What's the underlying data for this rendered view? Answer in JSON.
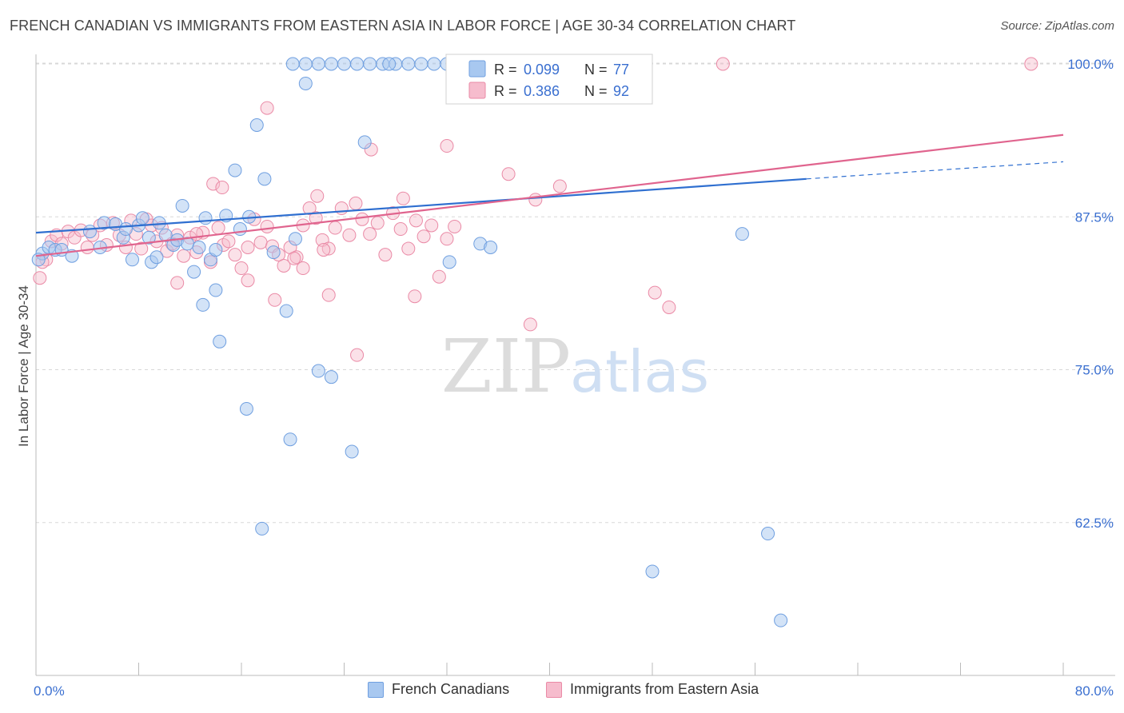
{
  "header": {
    "title": "FRENCH CANADIAN VS IMMIGRANTS FROM EASTERN ASIA IN LABOR FORCE | AGE 30-34 CORRELATION CHART",
    "source": "Source: ZipAtlas.com"
  },
  "watermark": {
    "zip": "ZIP",
    "atlas": "atlas"
  },
  "colors": {
    "blue_fill": "#a8c8f0",
    "blue_stroke": "#6f9fe0",
    "blue_line": "#2f6fd0",
    "pink_fill": "#f6bccd",
    "pink_stroke": "#ea8aa6",
    "pink_line": "#e0648e",
    "value_text": "#3a6fd0",
    "grid": "#d8d8d8"
  },
  "legend": {
    "blue": {
      "r_label": "R =",
      "r_value": "0.099",
      "n_label": "N =",
      "n_value": "77"
    },
    "pink": {
      "r_label": "R =",
      "r_value": "0.386",
      "n_label": "N =",
      "n_value": "92"
    }
  },
  "chart_data": {
    "type": "scatter",
    "title": "FRENCH CANADIAN VS IMMIGRANTS FROM EASTERN ASIA IN LABOR FORCE | AGE 30-34 CORRELATION CHART",
    "ylabel": "In Labor Force | Age 30-34",
    "xlabel": "",
    "xlim": [
      0,
      80
    ],
    "ylim": [
      50,
      100
    ],
    "x_tick_labels": [
      "0.0%",
      "80.0%"
    ],
    "y_ticks": [
      100,
      87.5,
      75,
      62.5
    ],
    "y_tick_labels": [
      "100.0%",
      "87.5%",
      "75.0%",
      "62.5%"
    ],
    "grid": true,
    "legend_position": "top-center",
    "series": [
      {
        "name": "French Canadians",
        "color": "#6f9fe0",
        "r": 0.099,
        "n": 77,
        "trend": {
          "x": [
            0,
            60
          ],
          "y": [
            86.2,
            90.6
          ],
          "dashed_to": [
            80,
            92.0
          ]
        },
        "points": [
          [
            0.5,
            84.5
          ],
          [
            1.0,
            85.0
          ],
          [
            1.5,
            84.8
          ],
          [
            2.0,
            84.8
          ],
          [
            2.8,
            84.3
          ],
          [
            4.2,
            86.3
          ],
          [
            5.0,
            85.0
          ],
          [
            5.3,
            87.0
          ],
          [
            6.2,
            86.9
          ],
          [
            6.8,
            85.8
          ],
          [
            7.0,
            86.5
          ],
          [
            7.5,
            84.0
          ],
          [
            8.0,
            86.8
          ],
          [
            8.3,
            87.4
          ],
          [
            8.8,
            85.8
          ],
          [
            9.0,
            83.8
          ],
          [
            9.4,
            84.2
          ],
          [
            9.6,
            87.0
          ],
          [
            10.1,
            86.0
          ],
          [
            10.7,
            85.2
          ],
          [
            11.0,
            85.6
          ],
          [
            11.4,
            88.4
          ],
          [
            11.8,
            85.3
          ],
          [
            12.3,
            83.0
          ],
          [
            12.7,
            85.0
          ],
          [
            13.2,
            87.4
          ],
          [
            13.6,
            84.0
          ],
          [
            14.0,
            84.8
          ],
          [
            13.0,
            80.3
          ],
          [
            14.0,
            81.5
          ],
          [
            14.3,
            77.3
          ],
          [
            14.8,
            87.6
          ],
          [
            15.5,
            91.3
          ],
          [
            15.9,
            86.5
          ],
          [
            16.6,
            87.5
          ],
          [
            16.4,
            71.8
          ],
          [
            17.2,
            95.0
          ],
          [
            17.8,
            90.6
          ],
          [
            17.6,
            62.0
          ],
          [
            18.5,
            84.6
          ],
          [
            19.5,
            79.8
          ],
          [
            19.8,
            69.3
          ],
          [
            20.2,
            85.7
          ],
          [
            21.0,
            98.4
          ],
          [
            22.0,
            74.9
          ],
          [
            23.0,
            74.4
          ],
          [
            24.6,
            68.3
          ],
          [
            25.6,
            93.6
          ],
          [
            20.0,
            100
          ],
          [
            21.0,
            100
          ],
          [
            22.0,
            100
          ],
          [
            23.0,
            100
          ],
          [
            24.0,
            100
          ],
          [
            25.0,
            100
          ],
          [
            26.0,
            100
          ],
          [
            27.0,
            100
          ],
          [
            28.0,
            100
          ],
          [
            29.0,
            100
          ],
          [
            30.0,
            100
          ],
          [
            31.0,
            100
          ],
          [
            33.0,
            100
          ],
          [
            34.0,
            100
          ],
          [
            35.0,
            100
          ],
          [
            36.0,
            100
          ],
          [
            37.0,
            100
          ],
          [
            40.0,
            100
          ],
          [
            41.0,
            100
          ],
          [
            43.0,
            100
          ],
          [
            44.0,
            100
          ],
          [
            27.5,
            100
          ],
          [
            32.0,
            100
          ],
          [
            32.2,
            83.8
          ],
          [
            34.6,
            85.3
          ],
          [
            35.4,
            85.0
          ],
          [
            55.0,
            86.1
          ],
          [
            48.0,
            58.5
          ],
          [
            57.0,
            61.6
          ],
          [
            58.0,
            54.5
          ],
          [
            0.2,
            84.0
          ]
        ]
      },
      {
        "name": "Immigrants from Eastern Asia",
        "color": "#ea8aa6",
        "r": 0.386,
        "n": 92,
        "trend": {
          "x": [
            0,
            80
          ],
          "y": [
            84.3,
            94.2
          ]
        },
        "points": [
          [
            0.3,
            82.5
          ],
          [
            0.8,
            84.0
          ],
          [
            1.2,
            85.5
          ],
          [
            1.6,
            86.0
          ],
          [
            2.0,
            85.3
          ],
          [
            2.5,
            86.3
          ],
          [
            3.0,
            85.8
          ],
          [
            3.5,
            86.4
          ],
          [
            4.0,
            85.0
          ],
          [
            4.4,
            86.0
          ],
          [
            5.0,
            86.8
          ],
          [
            5.5,
            85.2
          ],
          [
            6.0,
            87.0
          ],
          [
            6.5,
            86.0
          ],
          [
            7.0,
            85.0
          ],
          [
            7.4,
            87.2
          ],
          [
            7.8,
            86.1
          ],
          [
            8.2,
            84.9
          ],
          [
            8.6,
            87.3
          ],
          [
            9.0,
            86.8
          ],
          [
            9.4,
            85.5
          ],
          [
            9.8,
            86.6
          ],
          [
            10.2,
            84.7
          ],
          [
            10.6,
            85.3
          ],
          [
            11.0,
            86.0
          ],
          [
            11.5,
            84.3
          ],
          [
            12.0,
            85.8
          ],
          [
            12.5,
            84.6
          ],
          [
            13.0,
            86.2
          ],
          [
            13.6,
            83.8
          ],
          [
            14.2,
            86.6
          ],
          [
            14.6,
            85.2
          ],
          [
            15.0,
            85.5
          ],
          [
            15.5,
            84.4
          ],
          [
            16.0,
            83.3
          ],
          [
            16.5,
            85.0
          ],
          [
            17.0,
            87.3
          ],
          [
            17.5,
            85.4
          ],
          [
            18.0,
            86.7
          ],
          [
            18.4,
            85.1
          ],
          [
            18.9,
            84.4
          ],
          [
            19.3,
            83.5
          ],
          [
            19.8,
            85.0
          ],
          [
            20.3,
            84.2
          ],
          [
            20.8,
            86.8
          ],
          [
            21.3,
            88.2
          ],
          [
            21.8,
            87.4
          ],
          [
            22.3,
            85.6
          ],
          [
            22.8,
            84.9
          ],
          [
            23.3,
            86.6
          ],
          [
            23.8,
            88.2
          ],
          [
            24.4,
            86.0
          ],
          [
            24.9,
            88.6
          ],
          [
            25.4,
            87.3
          ],
          [
            26.0,
            86.1
          ],
          [
            26.6,
            87.0
          ],
          [
            27.2,
            84.4
          ],
          [
            27.8,
            87.8
          ],
          [
            28.4,
            86.5
          ],
          [
            29.0,
            84.9
          ],
          [
            29.6,
            87.2
          ],
          [
            30.2,
            85.9
          ],
          [
            30.8,
            86.8
          ],
          [
            31.4,
            82.6
          ],
          [
            32.0,
            85.7
          ],
          [
            32.6,
            86.7
          ],
          [
            11.0,
            82.1
          ],
          [
            12.5,
            86.1
          ],
          [
            13.8,
            90.2
          ],
          [
            14.5,
            89.9
          ],
          [
            18.0,
            96.4
          ],
          [
            18.6,
            80.7
          ],
          [
            20.8,
            83.3
          ],
          [
            21.9,
            89.2
          ],
          [
            22.8,
            81.1
          ],
          [
            25.0,
            76.2
          ],
          [
            26.1,
            93.0
          ],
          [
            28.6,
            89.0
          ],
          [
            29.5,
            81.0
          ],
          [
            32.0,
            93.3
          ],
          [
            36.8,
            91.0
          ],
          [
            38.5,
            78.7
          ],
          [
            38.9,
            88.9
          ],
          [
            40.8,
            90.0
          ],
          [
            48.2,
            81.3
          ],
          [
            49.3,
            80.1
          ],
          [
            53.5,
            100
          ],
          [
            77.5,
            100
          ],
          [
            16.5,
            82.3
          ],
          [
            20.1,
            84.1
          ],
          [
            22.4,
            84.8
          ],
          [
            0.5,
            83.8
          ]
        ]
      }
    ]
  },
  "bottom_legend": {
    "blue_label": "French Canadians",
    "pink_label": "Immigrants from Eastern Asia"
  }
}
